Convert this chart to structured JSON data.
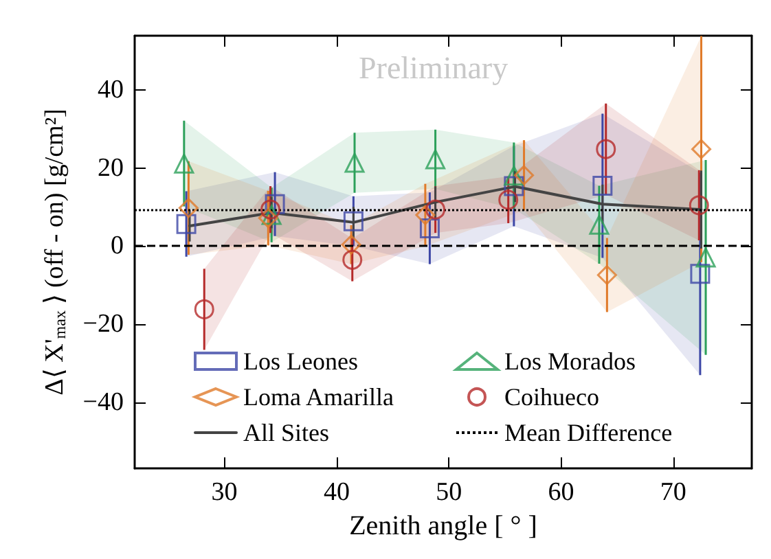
{
  "chart_data": {
    "type": "scatter",
    "xlabel": "Zenith angle [ ° ]",
    "ylabel": "Δ⟨ X'$_{max}$ ⟩ (off - on) [g/cm²]",
    "annotations": [
      "Preliminary"
    ],
    "xlim": [
      22,
      77
    ],
    "ylim": [
      -57,
      54
    ],
    "xticks": [
      30,
      40,
      50,
      60,
      70
    ],
    "yticks": [
      -40,
      -20,
      0,
      20,
      40
    ],
    "grid": false,
    "legend": "bottom left",
    "series": [
      {
        "name": "Los Leones",
        "marker": "square",
        "color": "#3d47a6",
        "x": [
          26.6,
          34.5,
          41.5,
          48.3,
          55.8,
          63.7,
          72.4
        ],
        "values": [
          5.7,
          10.8,
          6.4,
          4.6,
          15.4,
          15.5,
          -7.1
        ],
        "errors": [
          8.4,
          8.2,
          6.4,
          9.2,
          10.3,
          18.5,
          26
        ],
        "lower": [
          -2.7,
          2.6,
          0,
          -4.6,
          5.1,
          -3,
          -33.1
        ],
        "upper": [
          14.1,
          19,
          12.8,
          13.8,
          25.7,
          34,
          18.9
        ]
      },
      {
        "name": "Los Morados",
        "marker": "triangle",
        "color": "#2ca05a",
        "x": [
          26.4,
          34.2,
          41.6,
          48.8,
          55.8,
          63.4,
          72.9
        ],
        "values": [
          21.2,
          8,
          21.4,
          22.3,
          18.1,
          5.5,
          -2.9
        ],
        "errors": [
          11,
          7,
          7.7,
          7.6,
          8.5,
          10,
          25
        ],
        "lower": [
          10.2,
          1,
          13.7,
          14.7,
          9.6,
          -4.5,
          -27.9
        ],
        "upper": [
          32.2,
          15,
          29.1,
          29.9,
          26.6,
          15.5,
          22.1
        ]
      },
      {
        "name": "Loma Amarilla",
        "marker": "diamond",
        "color": "#e07b2a",
        "x": [
          26.8,
          33.9,
          41.3,
          47.9,
          56.7,
          64.1,
          72.5
        ],
        "values": [
          9.8,
          7.2,
          0.4,
          8,
          18.2,
          -7.4,
          24.9
        ],
        "errors": [
          12,
          7,
          5,
          8,
          9,
          9.5,
          29
        ],
        "lower": [
          -2.2,
          0.2,
          -4.6,
          0,
          9.2,
          -16.9,
          -4.1
        ],
        "upper": [
          21.8,
          14.2,
          5.4,
          16,
          27.2,
          2.1,
          53.9
        ]
      },
      {
        "name": "Coihueco",
        "marker": "circle",
        "color": "#b52a2a",
        "x": [
          28.2,
          34.1,
          41.4,
          48.8,
          55.3,
          64,
          72.3
        ],
        "values": [
          -16.2,
          9.4,
          -3.5,
          9.4,
          11.9,
          24.9,
          10.5
        ],
        "errors": [
          10.4,
          6,
          5.5,
          6,
          6,
          11.7,
          9
        ],
        "lower": [
          -26.6,
          3.4,
          -9,
          3.4,
          5.9,
          13.2,
          1.5
        ],
        "upper": [
          -5.8,
          15.4,
          2,
          15.4,
          17.9,
          36.6,
          19.5
        ]
      },
      {
        "name": "All Sites",
        "type": "line",
        "marker": "none",
        "line_style": "solid",
        "color": "#444444",
        "x": [
          26.9,
          34.2,
          41.5,
          48.8,
          55.9,
          63.7,
          72.5
        ],
        "values": [
          5.2,
          8.6,
          6.1,
          11.3,
          15.3,
          10.8,
          9.4
        ],
        "errors": [
          4,
          4,
          4,
          4,
          4,
          5,
          10
        ]
      }
    ],
    "ref_lines": [
      {
        "axis": "y",
        "value": 9.2,
        "label": "Mean Difference",
        "line_style": "dotted",
        "color": "#000000"
      },
      {
        "axis": "y",
        "value": 0,
        "line_style": "dashed",
        "color": "#000000"
      }
    ]
  }
}
